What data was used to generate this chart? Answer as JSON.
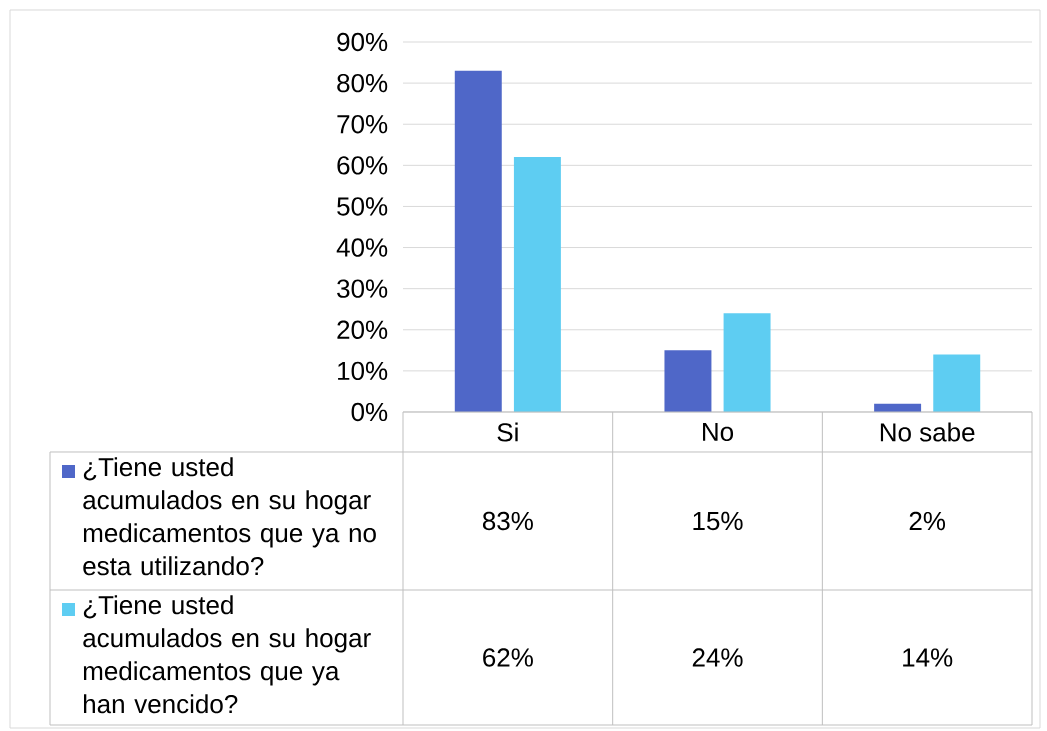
{
  "chart_data": {
    "type": "bar",
    "categories": [
      "Si",
      "No",
      "No sabe"
    ],
    "series": [
      {
        "name": "¿Tiene usted acumulados en su hogar medicamentos que ya no esta utilizando?",
        "color": "#4f67c8",
        "values": [
          83,
          15,
          2
        ],
        "value_labels": [
          "83%",
          "15%",
          "2%"
        ]
      },
      {
        "name": "¿Tiene usted acumulados en su hogar medicamentos que ya han vencido?",
        "color": "#5ecdf2",
        "values": [
          62,
          24,
          14
        ],
        "value_labels": [
          "62%",
          "24%",
          "14%"
        ]
      }
    ],
    "ylim": [
      0,
      90
    ],
    "yticks": [
      {
        "value": 0,
        "label": "0%"
      },
      {
        "value": 10,
        "label": "10%"
      },
      {
        "value": 20,
        "label": "20%"
      },
      {
        "value": 30,
        "label": "30%"
      },
      {
        "value": 40,
        "label": "40%"
      },
      {
        "value": 50,
        "label": "50%"
      },
      {
        "value": 60,
        "label": "60%"
      },
      {
        "value": 70,
        "label": "70%"
      },
      {
        "value": 80,
        "label": "80%"
      },
      {
        "value": 90,
        "label": "90%"
      }
    ],
    "grid": "y",
    "legend": "bottom"
  }
}
